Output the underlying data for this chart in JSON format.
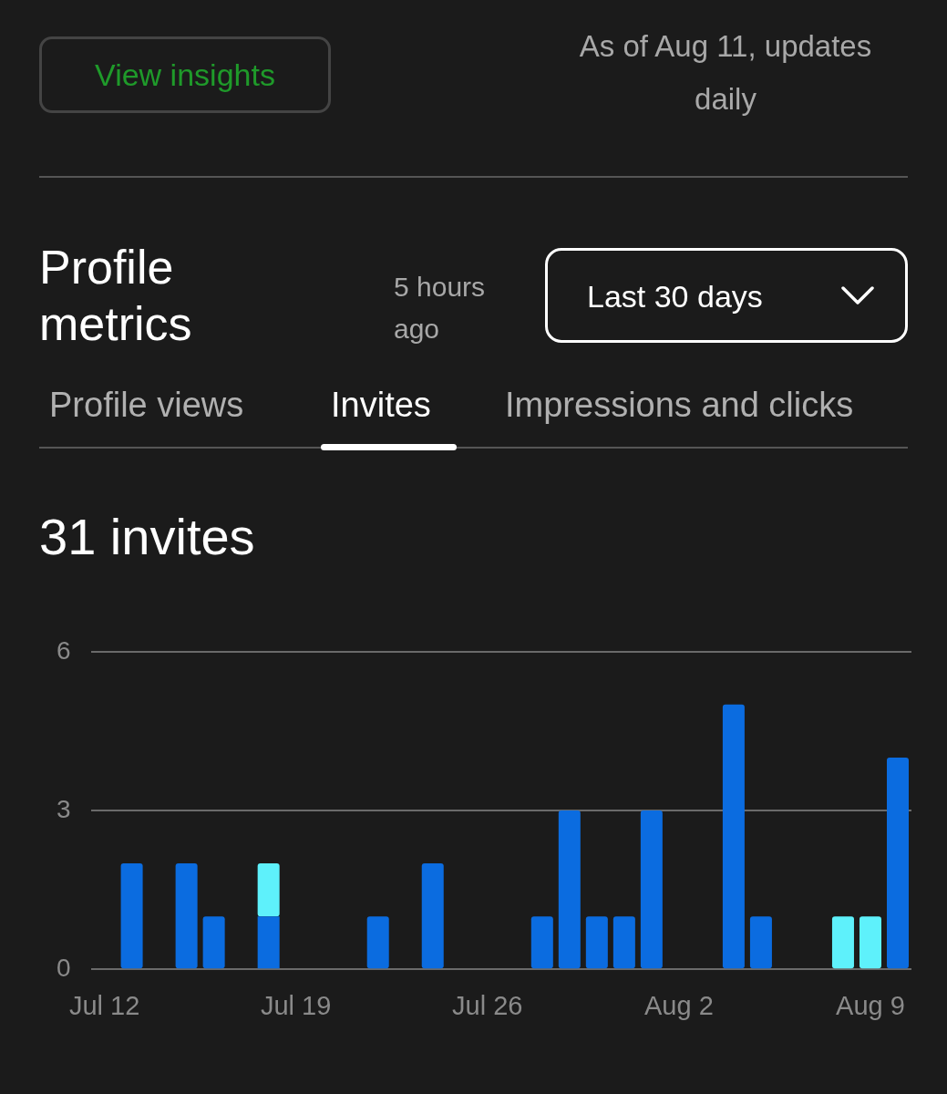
{
  "chart_data": {
    "type": "bar",
    "title": "Profile metrics",
    "subtitle": "31 invites",
    "annotations": [
      "View insights",
      "As of Aug 11, updates daily",
      "5 hours ago",
      "Last 30 days",
      "Profile views",
      "Invites",
      "Impressions and clicks"
    ],
    "categories": [
      "Jul 12",
      null,
      null,
      null,
      null,
      null,
      null,
      "Jul 19",
      null,
      null,
      null,
      null,
      null,
      null,
      "Jul 26",
      null,
      null,
      null,
      null,
      null,
      null,
      "Aug 2",
      null,
      null,
      null,
      null,
      null,
      null,
      "Aug 9",
      null
    ],
    "series": [
      {
        "color": "#0b6ce0",
        "values": [
          0,
          2,
          0,
          2,
          1,
          0,
          1,
          0,
          0,
          0,
          1,
          0,
          2,
          0,
          0,
          0,
          1,
          3,
          1,
          1,
          3,
          0,
          0,
          5,
          1,
          0,
          0,
          0,
          0,
          4
        ]
      },
      {
        "color": "#5ef1fb",
        "values": [
          0,
          0,
          0,
          0,
          0,
          0,
          1,
          0,
          0,
          0,
          0,
          0,
          0,
          0,
          0,
          0,
          0,
          0,
          0,
          0,
          0,
          0,
          0,
          0,
          0,
          0,
          0,
          1,
          1,
          0
        ]
      }
    ],
    "stacked": true,
    "ylim": [
      0,
      6
    ],
    "yticks": [
      0,
      3,
      6
    ],
    "grid": "y",
    "legend": false
  }
}
